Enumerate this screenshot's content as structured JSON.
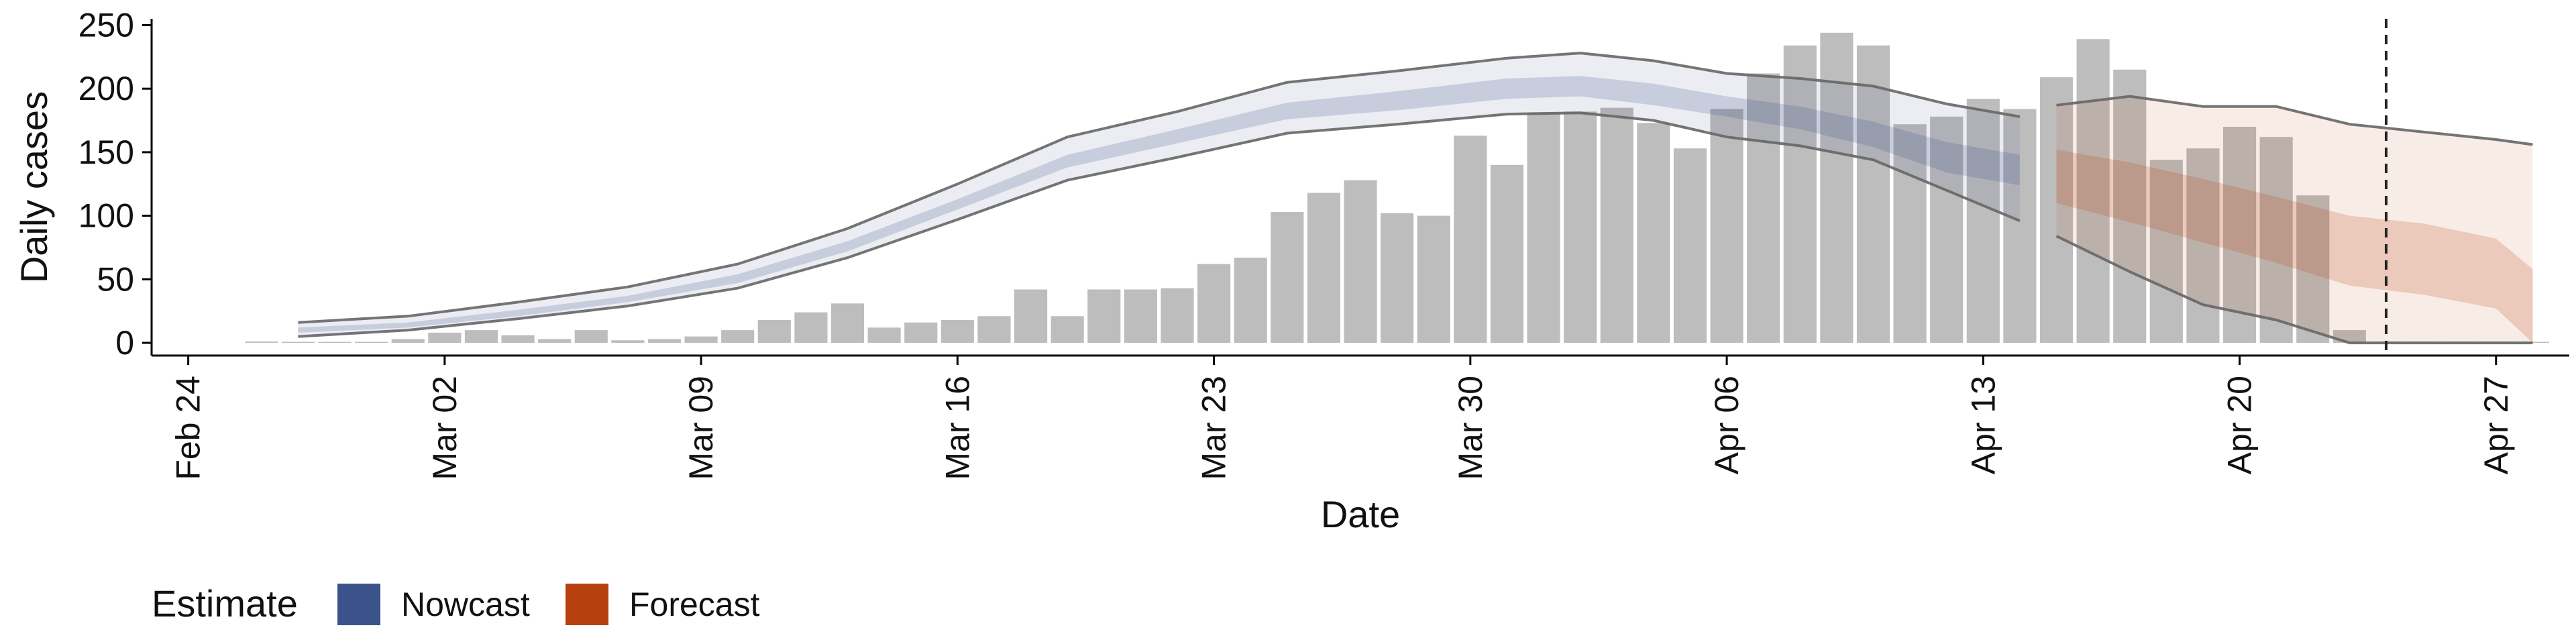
{
  "chart_data": {
    "type": "bar",
    "xlabel": "Date",
    "ylabel": "Daily cases",
    "x_range": [
      "2020-02-23",
      "2020-04-29"
    ],
    "ylim": [
      -10,
      255
    ],
    "y_ticks": [
      0,
      50,
      100,
      150,
      200,
      250
    ],
    "x_ticks": [
      "2020-02-24",
      "2020-03-02",
      "2020-03-09",
      "2020-03-16",
      "2020-03-23",
      "2020-03-30",
      "2020-04-06",
      "2020-04-13",
      "2020-04-20",
      "2020-04-27"
    ],
    "x_tick_labels": [
      "Feb 24",
      "Mar 02",
      "Mar 09",
      "Mar 16",
      "Mar 23",
      "Mar 30",
      "Apr 06",
      "Apr 13",
      "Apr 20",
      "Apr 27"
    ],
    "grid": false,
    "forecast_date_line": "2020-04-24",
    "colors": {
      "bars": "#bdbdbd",
      "nowcast": "#3b528b",
      "forecast": "#b8400f",
      "bound_lines": "#666666",
      "axis": "#000000"
    },
    "bars": {
      "dates": [
        "2020-02-26",
        "2020-02-27",
        "2020-02-28",
        "2020-02-29",
        "2020-03-01",
        "2020-03-02",
        "2020-03-03",
        "2020-03-04",
        "2020-03-05",
        "2020-03-06",
        "2020-03-07",
        "2020-03-08",
        "2020-03-09",
        "2020-03-10",
        "2020-03-11",
        "2020-03-12",
        "2020-03-13",
        "2020-03-14",
        "2020-03-15",
        "2020-03-16",
        "2020-03-17",
        "2020-03-18",
        "2020-03-19",
        "2020-03-20",
        "2020-03-21",
        "2020-03-22",
        "2020-03-23",
        "2020-03-24",
        "2020-03-25",
        "2020-03-26",
        "2020-03-27",
        "2020-03-28",
        "2020-03-29",
        "2020-03-30",
        "2020-03-31",
        "2020-04-01",
        "2020-04-02",
        "2020-04-03",
        "2020-04-04",
        "2020-04-05",
        "2020-04-06",
        "2020-04-07",
        "2020-04-08",
        "2020-04-09",
        "2020-04-10",
        "2020-04-11",
        "2020-04-12",
        "2020-04-13",
        "2020-04-14",
        "2020-04-15",
        "2020-04-16",
        "2020-04-17",
        "2020-04-18",
        "2020-04-19",
        "2020-04-20",
        "2020-04-21",
        "2020-04-22",
        "2020-04-23",
        "2020-04-24",
        "2020-04-25",
        "2020-04-26",
        "2020-04-27",
        "2020-04-28"
      ],
      "values": [
        1,
        0,
        0,
        0,
        3,
        8,
        10,
        6,
        3,
        10,
        2,
        3,
        5,
        10,
        18,
        24,
        31,
        12,
        16,
        18,
        21,
        42,
        21,
        42,
        42,
        43,
        62,
        67,
        103,
        118,
        128,
        102,
        100,
        163,
        140,
        181,
        182,
        185,
        173,
        153,
        184,
        212,
        234,
        244,
        234,
        172,
        178,
        192,
        184,
        209,
        239,
        215,
        144,
        153,
        170,
        162,
        116,
        10,
        0,
        0,
        0,
        0,
        0
      ]
    },
    "nowcast": {
      "dates": [
        "2020-02-27",
        "2020-03-01",
        "2020-03-04",
        "2020-03-07",
        "2020-03-10",
        "2020-03-13",
        "2020-03-16",
        "2020-03-19",
        "2020-03-22",
        "2020-03-25",
        "2020-03-28",
        "2020-03-31",
        "2020-04-02",
        "2020-04-04",
        "2020-04-06",
        "2020-04-08",
        "2020-04-10",
        "2020-04-12",
        "2020-04-14"
      ],
      "upper_90": [
        16,
        21,
        32,
        44,
        62,
        90,
        125,
        162,
        182,
        205,
        214,
        224,
        228,
        222,
        212,
        208,
        202,
        188,
        178
      ],
      "lower_90": [
        5,
        10,
        19,
        29,
        43,
        67,
        97,
        128,
        146,
        165,
        172,
        180,
        181,
        175,
        162,
        155,
        144,
        120,
        96
      ],
      "upper_50": [
        12,
        16,
        26,
        37,
        54,
        80,
        113,
        148,
        168,
        189,
        198,
        208,
        210,
        204,
        194,
        186,
        174,
        158,
        148
      ],
      "lower_50": [
        8,
        12,
        21,
        32,
        47,
        72,
        105,
        138,
        157,
        176,
        183,
        192,
        194,
        187,
        178,
        168,
        154,
        134,
        124
      ]
    },
    "forecast": {
      "dates": [
        "2020-04-15",
        "2020-04-17",
        "2020-04-19",
        "2020-04-21",
        "2020-04-23",
        "2020-04-25",
        "2020-04-27",
        "2020-04-28"
      ],
      "upper_90": [
        187,
        194,
        186,
        186,
        172,
        166,
        160,
        156
      ],
      "lower_90": [
        84,
        56,
        30,
        18,
        0,
        0,
        0,
        0
      ],
      "upper_50": [
        152,
        142,
        129,
        115,
        100,
        94,
        82,
        58
      ],
      "lower_50": [
        110,
        95,
        79,
        63,
        45,
        38,
        27,
        0
      ]
    },
    "legend": {
      "title": "Estimate",
      "position": "bottom-left",
      "items": [
        {
          "label": "Nowcast",
          "color": "#3b528b"
        },
        {
          "label": "Forecast",
          "color": "#b8400f"
        }
      ]
    }
  }
}
